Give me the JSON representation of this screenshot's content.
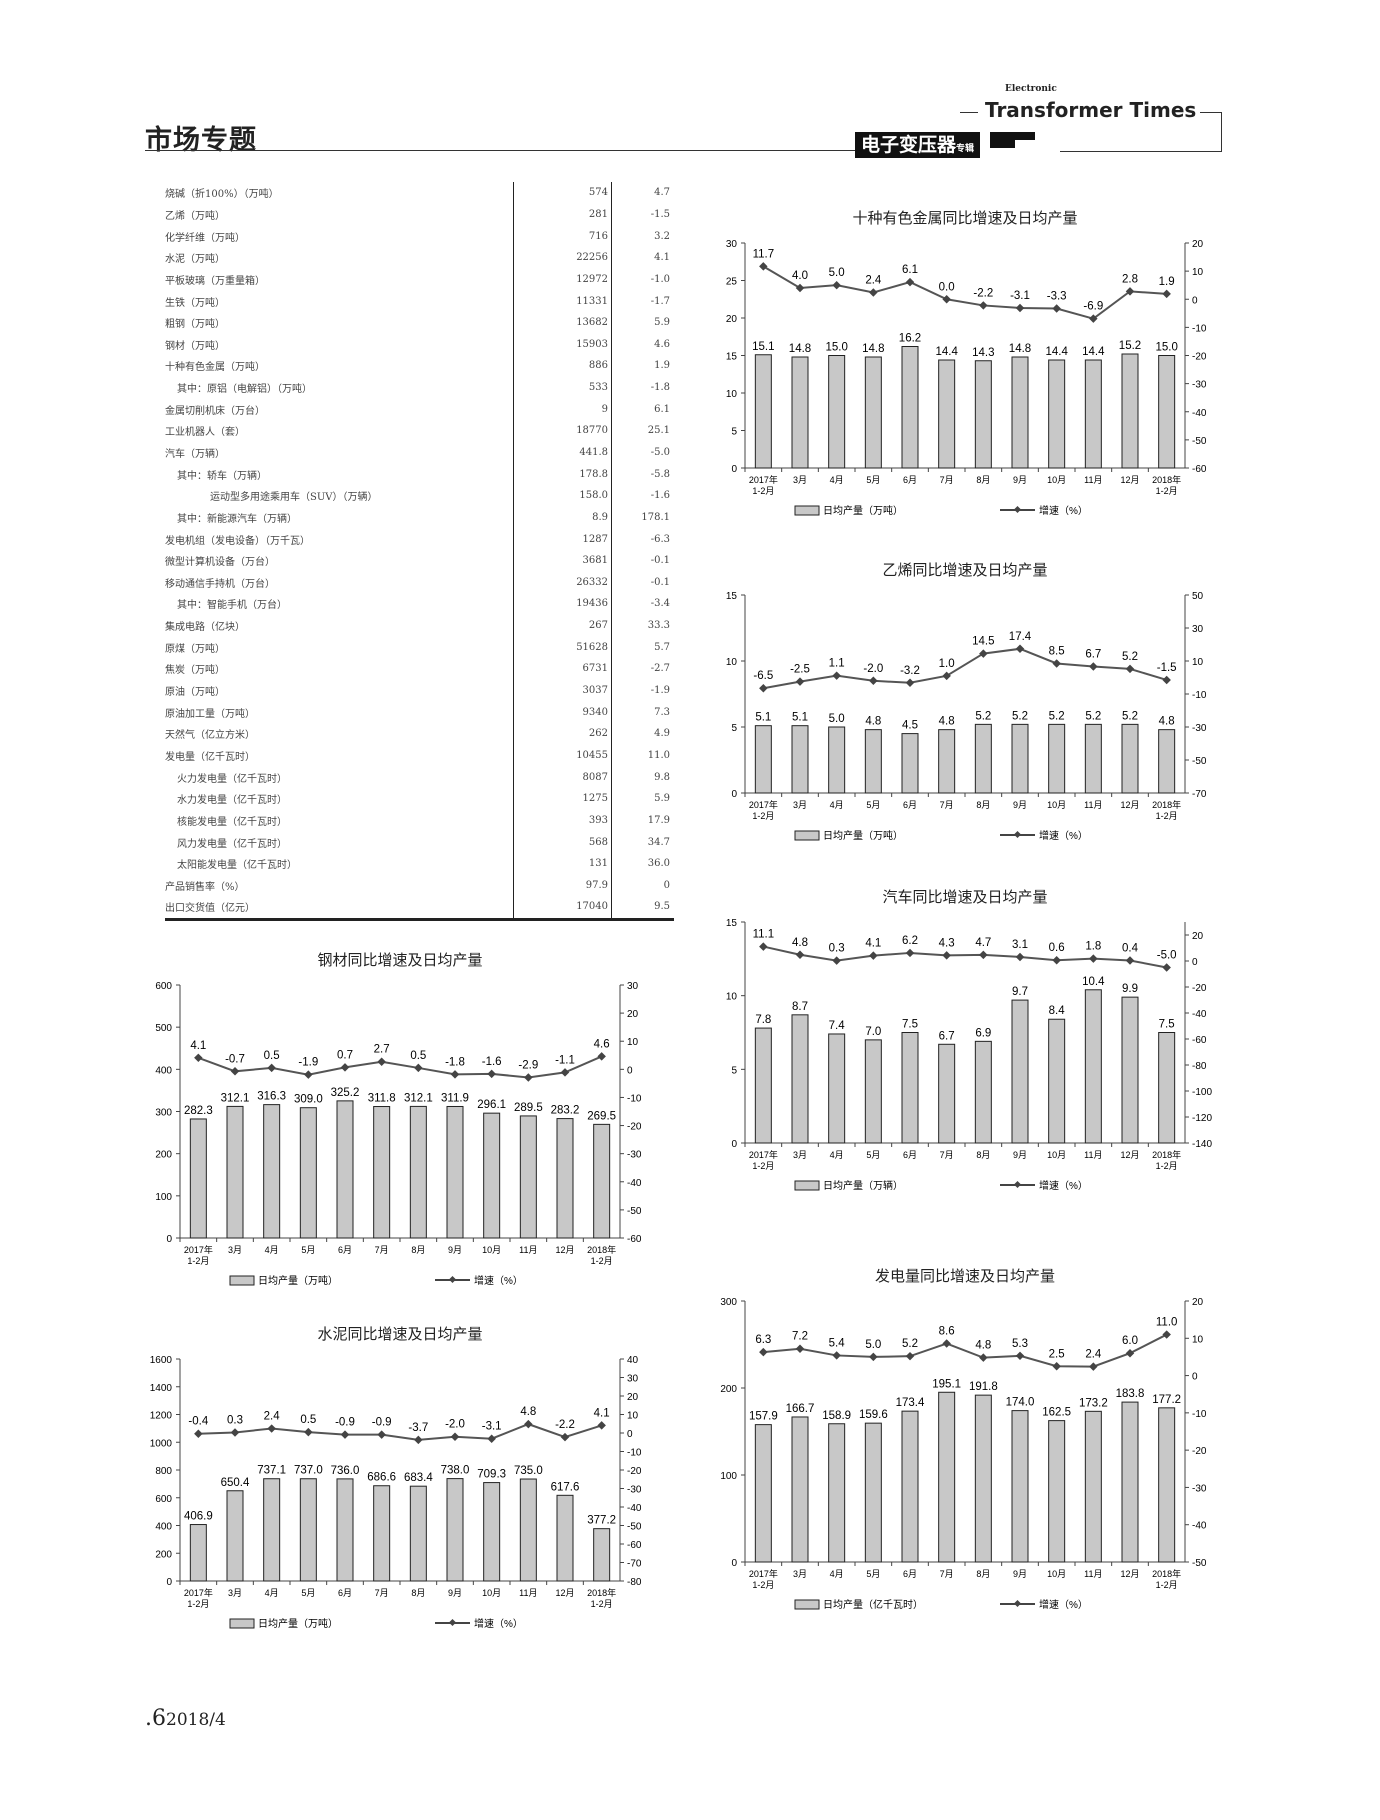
{
  "header": {
    "section_title": "市场专题",
    "brand_en_super": "Electronic",
    "brand_en": "Transformer Times",
    "brand_cn": "电子变压器",
    "brand_cn_small": "专辑"
  },
  "table": {
    "rows": [
      {
        "name": "烧碱（折100%）（万吨）",
        "value": "574",
        "growth": "4.7",
        "indent": 0
      },
      {
        "name": "乙烯（万吨）",
        "value": "281",
        "growth": "-1.5",
        "indent": 0
      },
      {
        "name": "化学纤维（万吨）",
        "value": "716",
        "growth": "3.2",
        "indent": 0
      },
      {
        "name": "水泥（万吨）",
        "value": "22256",
        "growth": "4.1",
        "indent": 0
      },
      {
        "name": "平板玻璃（万重量箱）",
        "value": "12972",
        "growth": "-1.0",
        "indent": 0
      },
      {
        "name": "生铁（万吨）",
        "value": "11331",
        "growth": "-1.7",
        "indent": 0
      },
      {
        "name": "粗钢（万吨）",
        "value": "13682",
        "growth": "5.9",
        "indent": 0
      },
      {
        "name": "钢材（万吨）",
        "value": "15903",
        "growth": "4.6",
        "indent": 0
      },
      {
        "name": "十种有色金属（万吨）",
        "value": "886",
        "growth": "1.9",
        "indent": 0
      },
      {
        "name": "其中：原铝（电解铝）（万吨）",
        "value": "533",
        "growth": "-1.8",
        "indent": 1
      },
      {
        "name": "金属切削机床（万台）",
        "value": "9",
        "growth": "6.1",
        "indent": 0
      },
      {
        "name": "工业机器人（套）",
        "value": "18770",
        "growth": "25.1",
        "indent": 0
      },
      {
        "name": "汽车（万辆）",
        "value": "441.8",
        "growth": "-5.0",
        "indent": 0
      },
      {
        "name": "其中：轿车（万辆）",
        "value": "178.8",
        "growth": "-5.8",
        "indent": 1
      },
      {
        "name": "运动型多用途乘用车（SUV）（万辆）",
        "value": "158.0",
        "growth": "-1.6",
        "indent": 2
      },
      {
        "name": "其中：新能源汽车（万辆）",
        "value": "8.9",
        "growth": "178.1",
        "indent": 1
      },
      {
        "name": "发电机组（发电设备）（万千瓦）",
        "value": "1287",
        "growth": "-6.3",
        "indent": 0
      },
      {
        "name": "微型计算机设备（万台）",
        "value": "3681",
        "growth": "-0.1",
        "indent": 0
      },
      {
        "name": "移动通信手持机（万台）",
        "value": "26332",
        "growth": "-0.1",
        "indent": 0
      },
      {
        "name": "其中：智能手机（万台）",
        "value": "19436",
        "growth": "-3.4",
        "indent": 1
      },
      {
        "name": "集成电路（亿块）",
        "value": "267",
        "growth": "33.3",
        "indent": 0
      },
      {
        "name": "原煤（万吨）",
        "value": "51628",
        "growth": "5.7",
        "indent": 0
      },
      {
        "name": "焦炭（万吨）",
        "value": "6731",
        "growth": "-2.7",
        "indent": 0
      },
      {
        "name": "原油（万吨）",
        "value": "3037",
        "growth": "-1.9",
        "indent": 0
      },
      {
        "name": "原油加工量（万吨）",
        "value": "9340",
        "growth": "7.3",
        "indent": 0
      },
      {
        "name": "天然气（亿立方米）",
        "value": "262",
        "growth": "4.9",
        "indent": 0
      },
      {
        "name": "发电量（亿千瓦时）",
        "value": "10455",
        "growth": "11.0",
        "indent": 0
      },
      {
        "name": "火力发电量（亿千瓦时）",
        "value": "8087",
        "growth": "9.8",
        "indent": 1
      },
      {
        "name": "水力发电量（亿千瓦时）",
        "value": "1275",
        "growth": "5.9",
        "indent": 1
      },
      {
        "name": "核能发电量（亿千瓦时）",
        "value": "393",
        "growth": "17.9",
        "indent": 1
      },
      {
        "name": "风力发电量（亿千瓦时）",
        "value": "568",
        "growth": "34.7",
        "indent": 1
      },
      {
        "name": "太阳能发电量（亿千瓦时）",
        "value": "131",
        "growth": "36.0",
        "indent": 1
      },
      {
        "name": "产品销售率（%）",
        "value": "97.9",
        "growth": "0",
        "indent": 0
      },
      {
        "name": "出口交货值（亿元）",
        "value": "17040",
        "growth": "9.5",
        "indent": 0
      }
    ]
  },
  "colors": {
    "bar": "#c8c8c8",
    "bar_stroke": "#222222",
    "line": "#555555"
  },
  "chart_data": [
    {
      "id": "nonferrous",
      "type": "bar+line",
      "title": "十种有色金属同比增速及日均产量",
      "categories": [
        [
          "2017年",
          "1-2月"
        ],
        [
          "3月"
        ],
        [
          "4月"
        ],
        [
          "5月"
        ],
        [
          "6月"
        ],
        [
          "7月"
        ],
        [
          "8月"
        ],
        [
          "9月"
        ],
        [
          "10月"
        ],
        [
          "11月"
        ],
        [
          "12月"
        ],
        [
          "2018年",
          "1-2月"
        ]
      ],
      "bars": {
        "name": "日均产量（万吨）",
        "values": [
          15.1,
          14.8,
          15.0,
          14.8,
          16.2,
          14.4,
          14.3,
          14.8,
          14.4,
          14.4,
          15.2,
          15.0
        ],
        "ylim": [
          0,
          30
        ],
        "ticks": [
          0,
          5,
          10,
          15,
          20,
          25,
          30
        ]
      },
      "line": {
        "name": "增速（%）",
        "values": [
          11.7,
          4.0,
          5.0,
          2.4,
          6.1,
          0.0,
          -2.2,
          -3.1,
          -3.3,
          -6.9,
          2.8,
          1.9
        ],
        "ylim": [
          -60,
          20
        ],
        "ticks": [
          -60,
          -50,
          -40,
          -30,
          -20,
          -10,
          0,
          10,
          20
        ]
      },
      "legend": "bottom"
    },
    {
      "id": "ethylene",
      "type": "bar+line",
      "title": "乙烯同比增速及日均产量",
      "categories": [
        [
          "2017年",
          "1-2月"
        ],
        [
          "3月"
        ],
        [
          "4月"
        ],
        [
          "5月"
        ],
        [
          "6月"
        ],
        [
          "7月"
        ],
        [
          "8月"
        ],
        [
          "9月"
        ],
        [
          "10月"
        ],
        [
          "11月"
        ],
        [
          "12月"
        ],
        [
          "2018年",
          "1-2月"
        ]
      ],
      "bars": {
        "name": "日均产量（万吨）",
        "values": [
          5.1,
          5.1,
          5.0,
          4.8,
          4.5,
          4.8,
          5.2,
          5.2,
          5.2,
          5.2,
          5.2,
          4.8
        ],
        "ylim": [
          0,
          15
        ],
        "ticks": [
          0,
          5,
          10,
          15
        ]
      },
      "line": {
        "name": "增速（%）",
        "values": [
          -6.5,
          -2.5,
          1.1,
          -2.0,
          -3.2,
          1.0,
          14.5,
          17.4,
          8.5,
          6.7,
          5.2,
          -1.5
        ],
        "ylim": [
          -70,
          50
        ],
        "ticks": [
          -70,
          -50,
          -30,
          -10,
          10,
          30,
          50
        ]
      },
      "legend": "bottom"
    },
    {
      "id": "auto",
      "type": "bar+line",
      "title": "汽车同比增速及日均产量",
      "categories": [
        [
          "2017年",
          "1-2月"
        ],
        [
          "3月"
        ],
        [
          "4月"
        ],
        [
          "5月"
        ],
        [
          "6月"
        ],
        [
          "7月"
        ],
        [
          "8月"
        ],
        [
          "9月"
        ],
        [
          "10月"
        ],
        [
          "11月"
        ],
        [
          "12月"
        ],
        [
          "2018年",
          "1-2月"
        ]
      ],
      "bars": {
        "name": "日均产量（万辆）",
        "values": [
          7.8,
          8.7,
          7.4,
          7.0,
          7.5,
          6.7,
          6.9,
          9.7,
          8.4,
          10.4,
          9.9,
          7.5
        ],
        "ylim": [
          0,
          15
        ],
        "ticks": [
          0,
          5,
          10,
          15
        ]
      },
      "line": {
        "name": "增速（%）",
        "values": [
          11.1,
          4.8,
          0.3,
          4.1,
          6.2,
          4.3,
          4.7,
          3.1,
          0.6,
          1.8,
          0.4,
          -5.0
        ],
        "ylim": [
          -140,
          30
        ],
        "ticks": [
          -140,
          -120,
          -100,
          -80,
          -60,
          -40,
          -20,
          0,
          20
        ]
      },
      "legend": "bottom"
    },
    {
      "id": "power",
      "type": "bar+line",
      "title": "发电量同比增速及日均产量",
      "categories": [
        [
          "2017年",
          "1-2月"
        ],
        [
          "3月"
        ],
        [
          "4月"
        ],
        [
          "5月"
        ],
        [
          "6月"
        ],
        [
          "7月"
        ],
        [
          "8月"
        ],
        [
          "9月"
        ],
        [
          "10月"
        ],
        [
          "11月"
        ],
        [
          "12月"
        ],
        [
          "2018年",
          "1-2月"
        ]
      ],
      "bars": {
        "name": "日均产量（亿千瓦时）",
        "values": [
          157.9,
          166.7,
          158.9,
          159.6,
          173.4,
          195.1,
          191.8,
          174.0,
          162.5,
          173.2,
          183.8,
          177.2
        ],
        "ylim": [
          0,
          300
        ],
        "ticks": [
          0,
          100,
          200,
          300
        ]
      },
      "line": {
        "name": "增速（%）",
        "values": [
          6.3,
          7.2,
          5.4,
          5.0,
          5.2,
          8.6,
          4.8,
          5.3,
          2.5,
          2.4,
          6.0,
          11.0
        ],
        "ylim": [
          -50,
          20
        ],
        "ticks": [
          -50,
          -40,
          -30,
          -20,
          -10,
          0,
          10,
          20
        ]
      },
      "legend": "bottom"
    },
    {
      "id": "steel",
      "type": "bar+line",
      "title": "钢材同比增速及日均产量",
      "categories": [
        [
          "2017年",
          "1-2月"
        ],
        [
          "3月"
        ],
        [
          "4月"
        ],
        [
          "5月"
        ],
        [
          "6月"
        ],
        [
          "7月"
        ],
        [
          "8月"
        ],
        [
          "9月"
        ],
        [
          "10月"
        ],
        [
          "11月"
        ],
        [
          "12月"
        ],
        [
          "2018年",
          "1-2月"
        ]
      ],
      "bars": {
        "name": "日均产量（万吨）",
        "values": [
          282.3,
          312.1,
          316.3,
          309.0,
          325.2,
          311.8,
          312.1,
          311.9,
          296.1,
          289.5,
          283.2,
          269.5
        ],
        "ylim": [
          0,
          600
        ],
        "ticks": [
          0,
          100,
          200,
          300,
          400,
          500,
          600
        ]
      },
      "line": {
        "name": "增速（%）",
        "values": [
          4.1,
          -0.7,
          0.5,
          -1.9,
          0.7,
          2.7,
          0.5,
          -1.8,
          -1.6,
          -2.9,
          -1.1,
          4.6
        ],
        "ylim": [
          -60,
          30
        ],
        "ticks": [
          -60,
          -50,
          -40,
          -30,
          -20,
          -10,
          0,
          10,
          20,
          30
        ]
      },
      "legend": "bottom"
    },
    {
      "id": "cement",
      "type": "bar+line",
      "title": "水泥同比增速及日均产量",
      "categories": [
        [
          "2017年",
          "1-2月"
        ],
        [
          "3月"
        ],
        [
          "4月"
        ],
        [
          "5月"
        ],
        [
          "6月"
        ],
        [
          "7月"
        ],
        [
          "8月"
        ],
        [
          "9月"
        ],
        [
          "10月"
        ],
        [
          "11月"
        ],
        [
          "12月"
        ],
        [
          "2018年",
          "1-2月"
        ]
      ],
      "bars": {
        "name": "日均产量（万吨）",
        "values": [
          406.9,
          650.4,
          737.1,
          737.0,
          736.0,
          686.6,
          683.4,
          738.0,
          709.3,
          735.0,
          617.6,
          377.2
        ],
        "ylim": [
          0,
          1600
        ],
        "ticks": [
          0,
          200,
          400,
          600,
          800,
          1000,
          1200,
          1400,
          1600
        ]
      },
      "line": {
        "name": "增速（%）",
        "values": [
          -0.4,
          0.3,
          2.4,
          0.5,
          -0.9,
          -0.9,
          -3.7,
          -2.0,
          -3.1,
          4.8,
          -2.2,
          4.1
        ],
        "ylim": [
          -80,
          40
        ],
        "ticks": [
          -80,
          -70,
          -60,
          -50,
          -40,
          -30,
          -20,
          -10,
          0,
          10,
          20,
          30,
          40
        ]
      },
      "legend": "bottom"
    }
  ],
  "footer": {
    "page": ".6",
    "issue": "2018/4"
  }
}
